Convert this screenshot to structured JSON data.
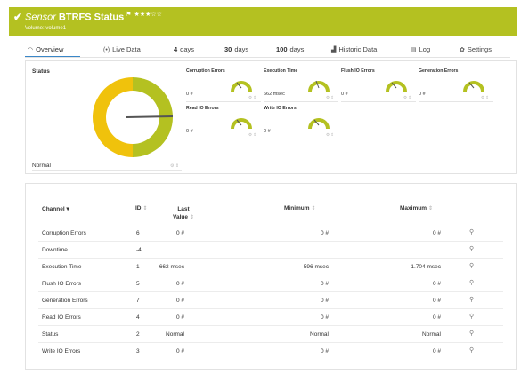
{
  "header": {
    "check_icon": "check-icon",
    "sensor_word": "Sensor",
    "sensor_name": "BTRFS Status",
    "flag_icon": "flag-icon",
    "stars": "★★★☆☆",
    "subtitle": "Volume: volume1",
    "bg_color": "#b4c121"
  },
  "tabs": [
    {
      "icon": "gauge-icon",
      "icon_glyph": "◠",
      "label": "Overview",
      "active": true
    },
    {
      "icon": "live-data-icon",
      "icon_glyph": "((•))",
      "label": "Live Data"
    },
    {
      "num": "4",
      "label": "days"
    },
    {
      "num": "30",
      "label": "days"
    },
    {
      "num": "100",
      "label": "days"
    },
    {
      "icon": "bar-chart-icon",
      "icon_glyph": "▟",
      "label": "Historic Data"
    },
    {
      "icon": "log-icon",
      "icon_glyph": "▤",
      "label": "Log"
    },
    {
      "icon": "gear-icon",
      "icon_glyph": "✿",
      "label": "Settings"
    }
  ],
  "overview": {
    "status_label": "Status",
    "status_value": "Normal",
    "gauges": [
      {
        "label": "Corruption Errors",
        "value": "0 #"
      },
      {
        "label": "Execution Time",
        "value": "662 msec"
      },
      {
        "label": "Flush IO Errors",
        "value": "0 #"
      },
      {
        "label": "Generation Errors",
        "value": "0 #"
      },
      {
        "label": "Read IO Errors",
        "value": "0 #"
      },
      {
        "label": "Write IO Errors",
        "value": "0 #"
      }
    ],
    "gauge_color": "#b4c121",
    "donut_colors": [
      "#f0c20c",
      "#b4c121"
    ]
  },
  "table": {
    "headers": {
      "channel": "Channel",
      "id": "ID",
      "last_value_1": "Last",
      "last_value_2": "Value",
      "minimum": "Minimum",
      "maximum": "Maximum"
    },
    "rows": [
      {
        "channel": "Corruption Errors",
        "id": "6",
        "last": "0 #",
        "min": "0 #",
        "max": "0 #"
      },
      {
        "channel": "Downtime",
        "id": "-4",
        "last": "",
        "min": "",
        "max": ""
      },
      {
        "channel": "Execution Time",
        "id": "1",
        "last": "662 msec",
        "min": "596 msec",
        "max": "1.704 msec"
      },
      {
        "channel": "Flush IO Errors",
        "id": "5",
        "last": "0 #",
        "min": "0 #",
        "max": "0 #"
      },
      {
        "channel": "Generation Errors",
        "id": "7",
        "last": "0 #",
        "min": "0 #",
        "max": "0 #"
      },
      {
        "channel": "Read IO Errors",
        "id": "4",
        "last": "0 #",
        "min": "0 #",
        "max": "0 #"
      },
      {
        "channel": "Status",
        "id": "2",
        "last": "Normal",
        "min": "Normal",
        "max": "Normal"
      },
      {
        "channel": "Write IO Errors",
        "id": "3",
        "last": "0 #",
        "min": "0 #",
        "max": "0 #"
      }
    ],
    "row_action_icon": "wrench-icon"
  }
}
